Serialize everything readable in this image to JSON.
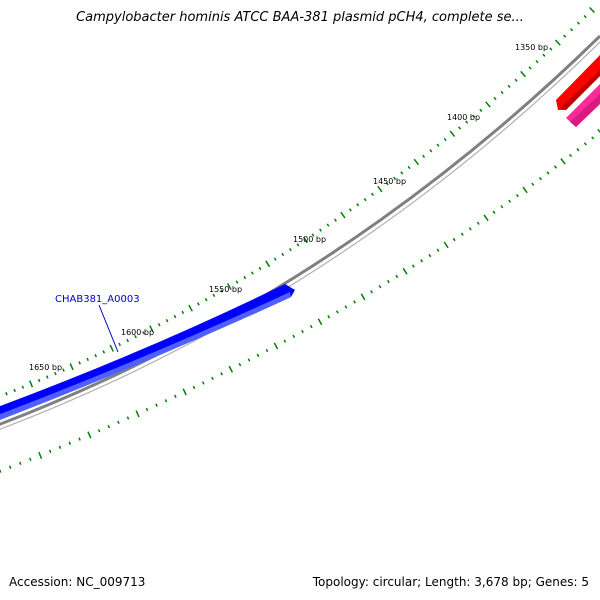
{
  "title": "Campylobacter hominis ATCC BAA-381 plasmid pCH4, complete se...",
  "footer": {
    "accession_label": "Accession:",
    "accession": "NC_009713",
    "topology_label": "Topology:",
    "topology": "circular",
    "length_label": "Length:",
    "length": "3,678 bp",
    "genes_label": "Genes:",
    "genes": "5"
  },
  "ticks": [
    {
      "label": "1350 bp"
    },
    {
      "label": "1400 bp"
    },
    {
      "label": "1450 bp"
    },
    {
      "label": "1500 bp"
    },
    {
      "label": "1550 bp"
    },
    {
      "label": "1600 bp"
    },
    {
      "label": "1650 bp"
    }
  ],
  "genes": [
    {
      "label": "CHAB381_A0003",
      "color": "#0000ff",
      "shade": "#5050ff"
    }
  ],
  "colors": {
    "backbone": "#808080",
    "ticks": "#008000",
    "gene_red": "#ff0000",
    "gene_pink": "#ff2a9a"
  }
}
